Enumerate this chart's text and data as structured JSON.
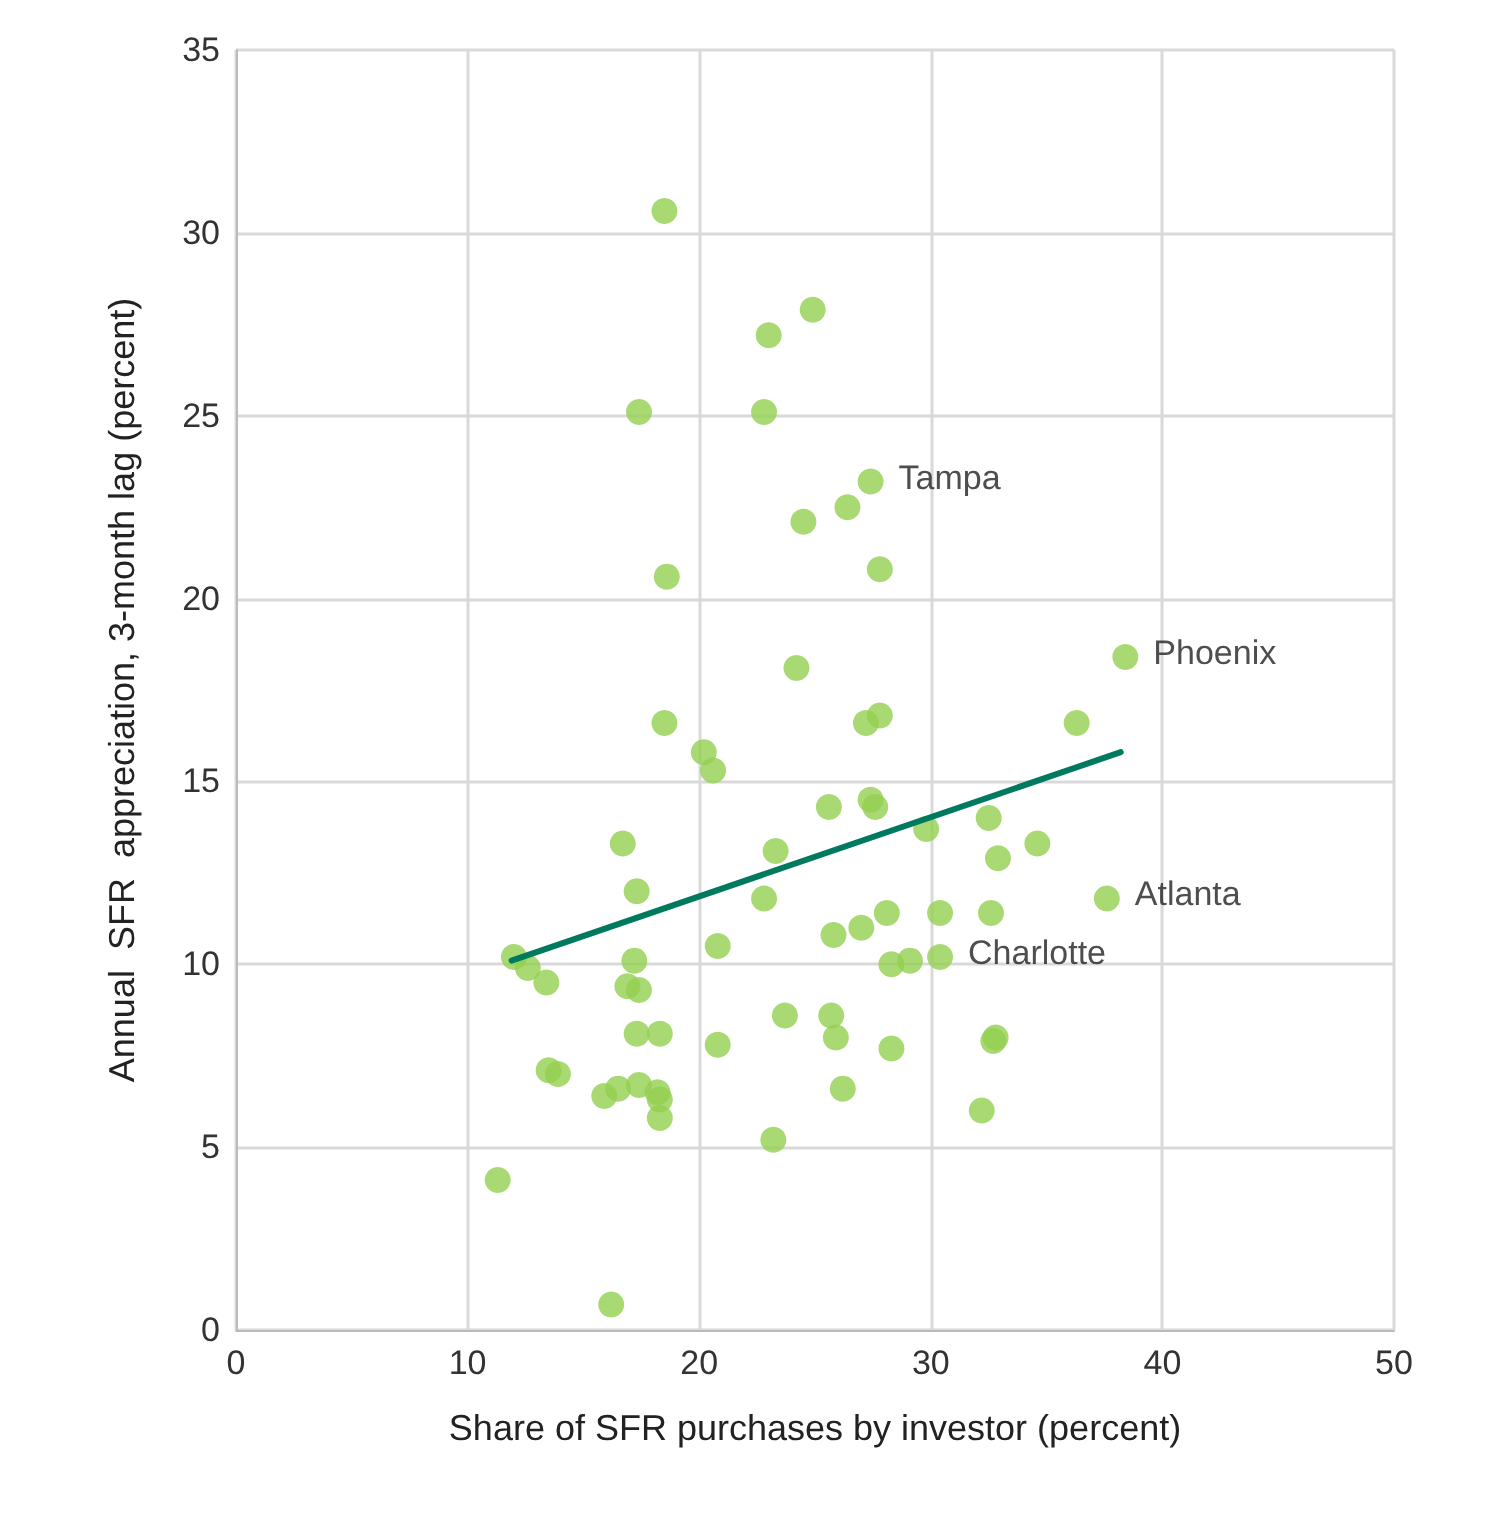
{
  "chart_data": {
    "type": "scatter",
    "xlabel": "Share of SFR purchases by investor (percent)",
    "ylabel": "Annual  SFR  appreciation, 3-month lag (percent)",
    "xlim": [
      0,
      50
    ],
    "xticks": [
      0,
      10,
      20,
      30,
      40,
      50
    ],
    "ylim": [
      0,
      35
    ],
    "yticks": [
      0,
      5,
      10,
      15,
      20,
      25,
      30,
      35
    ],
    "grid": true,
    "marker": "circle",
    "series": [
      {
        "color": "#92d050",
        "x": [
          18.5,
          23.0,
          24.9,
          17.4,
          22.8,
          27.4,
          24.5,
          26.4,
          27.8,
          18.6,
          38.4,
          24.2,
          18.5,
          27.8,
          27.2,
          36.3,
          20.2,
          20.6,
          25.6,
          27.4,
          27.6,
          32.5,
          16.7,
          23.3,
          34.6,
          29.8,
          32.9,
          17.3,
          37.6,
          22.8,
          30.4,
          28.1,
          32.6,
          27.0,
          25.8,
          20.8,
          12.0,
          12.6,
          17.2,
          28.3,
          29.1,
          30.4,
          13.4,
          16.9,
          17.4,
          17.3,
          18.3,
          23.7,
          25.7,
          25.9,
          32.8,
          32.7,
          20.8,
          28.3,
          13.5,
          13.9,
          17.4,
          16.5,
          18.2,
          18.3,
          15.9,
          26.2,
          32.2,
          18.3,
          23.2,
          11.3,
          16.2
        ],
        "values": [
          30.6,
          27.2,
          27.9,
          25.1,
          25.1,
          23.2,
          22.1,
          22.5,
          20.8,
          20.6,
          18.4,
          18.1,
          16.6,
          16.8,
          16.6,
          16.6,
          15.8,
          15.3,
          14.3,
          14.5,
          14.3,
          14.0,
          13.3,
          13.1,
          13.3,
          13.7,
          12.9,
          12.0,
          11.8,
          11.8,
          11.4,
          11.4,
          11.4,
          11.0,
          10.8,
          10.5,
          10.2,
          9.9,
          10.1,
          10.0,
          10.1,
          10.2,
          9.5,
          9.4,
          9.3,
          8.1,
          8.1,
          8.6,
          8.6,
          8.0,
          8.0,
          7.9,
          7.8,
          7.7,
          7.1,
          7.0,
          6.7,
          6.6,
          6.5,
          6.3,
          6.4,
          6.6,
          6.0,
          5.8,
          5.2,
          4.1,
          0.7
        ]
      },
      {
        "type": "line",
        "color": "#007a5e",
        "marker": "none",
        "x": [
          11.9,
          38.2
        ],
        "values": [
          10.1,
          15.8
        ]
      }
    ],
    "annotations": [
      {
        "text": "Tampa",
        "x": 27.4,
        "y": 23.2
      },
      {
        "text": "Phoenix",
        "x": 38.4,
        "y": 18.4
      },
      {
        "text": "Atlanta",
        "x": 37.6,
        "y": 11.8
      },
      {
        "text": "Charlotte",
        "x": 30.4,
        "y": 10.2
      }
    ]
  }
}
